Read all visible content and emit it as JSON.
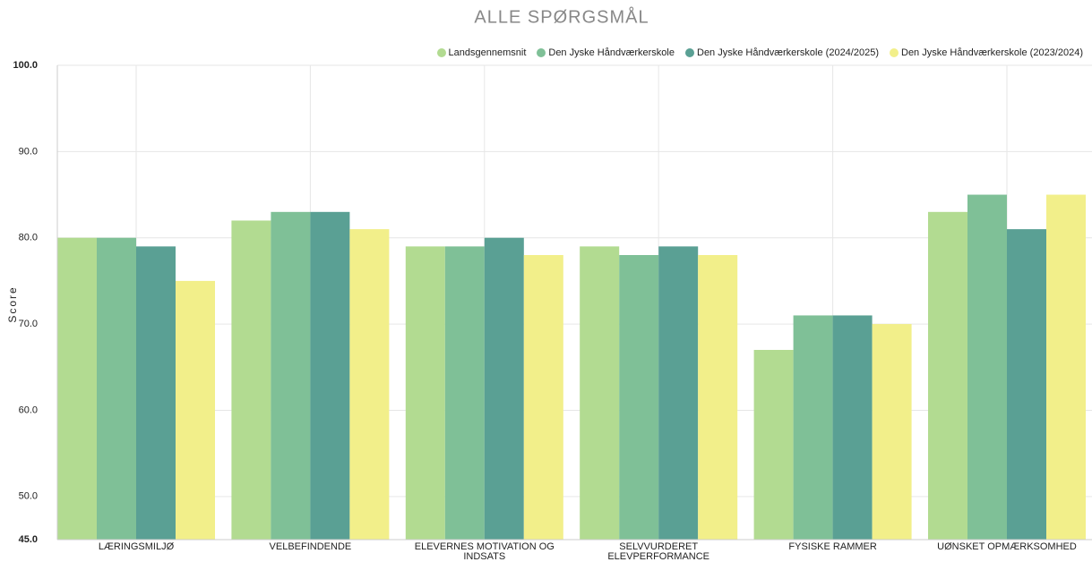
{
  "chart_data": {
    "type": "bar",
    "title": "ALLE SPØRGSMÅL",
    "y_label": "Score",
    "categories": [
      "LÆRINGSMILJØ",
      "VELBEFINDENDE",
      "ELEVERNES MOTIVATION OG INDSATS",
      "SELVVURDERET ELEVPERFORMANCE",
      "FYSISKE RAMMER",
      "UØNSKET OPMÆRKSOMHED"
    ],
    "series": [
      {
        "name": "Landsgennemsnit",
        "color": "#b2db91",
        "values": [
          80,
          82,
          79,
          79,
          67,
          83
        ]
      },
      {
        "name": "Den Jyske Håndværkerskole",
        "color": "#7fc097",
        "values": [
          80,
          83,
          79,
          78,
          71,
          85
        ]
      },
      {
        "name": "Den Jyske Håndværkerskole (2024/2025)",
        "color": "#5aa094",
        "values": [
          79,
          83,
          80,
          79,
          71,
          81
        ]
      },
      {
        "name": "Den Jyske Håndværkerskole (2023/2024)",
        "color": "#f2ef8a",
        "values": [
          75,
          81,
          78,
          78,
          70,
          85
        ]
      }
    ],
    "ylim": [
      45,
      100
    ],
    "yticks": [
      {
        "value": 45,
        "label": "45.0"
      },
      {
        "value": 50,
        "label": "50.0"
      },
      {
        "value": 60,
        "label": "60.0"
      },
      {
        "value": 70,
        "label": "70.0"
      },
      {
        "value": 80,
        "label": "80.0"
      },
      {
        "value": 90,
        "label": "90.0"
      },
      {
        "value": 100,
        "label": "100.0"
      }
    ],
    "grid": true,
    "legend": "top-right"
  }
}
